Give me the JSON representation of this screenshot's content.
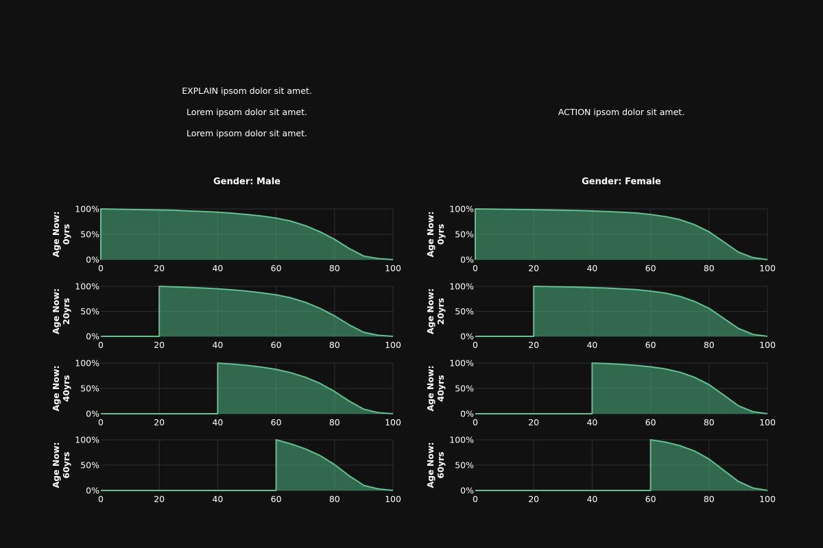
{
  "annotations": {
    "left": [
      "EXPLAIN ipsom dolor sit amet.",
      "Lorem ipsom dolor sit amet.",
      "Lorem ipsom dolor sit amet."
    ],
    "right": [
      "ACTION ipsom dolor sit amet."
    ]
  },
  "colors": {
    "background": "#111111",
    "grid": "#2b3038",
    "fill": "#4aa578",
    "line": "#5cc48e",
    "text": "#ffffff"
  },
  "chart_data": {
    "type": "area",
    "layout": "4 rows x 2 columns of small multiples",
    "columns": [
      "Gender: Male",
      "Gender: Female"
    ],
    "rows": [
      [
        "Age Now:",
        "0yrs"
      ],
      [
        "Age Now:",
        "20yrs"
      ],
      [
        "Age Now:",
        "40yrs"
      ],
      [
        "Age Now:",
        "60yrs"
      ]
    ],
    "row_start_ages": [
      0,
      20,
      40,
      60
    ],
    "xlim": [
      0,
      100
    ],
    "ylim": [
      0,
      1
    ],
    "x_ticks": [
      0,
      20,
      40,
      60,
      80,
      100
    ],
    "y_ticks": [
      0,
      0.5,
      1
    ],
    "y_tick_labels": [
      "0%",
      "50%",
      "100%"
    ],
    "grid": true,
    "series": [
      {
        "gender": "Male",
        "ages": [
          0,
          20,
          25,
          30,
          35,
          40,
          45,
          50,
          55,
          60,
          65,
          70,
          75,
          80,
          85,
          90,
          95,
          100
        ],
        "survival": [
          [
            1.0,
            0.98,
            0.975,
            0.96,
            0.95,
            0.935,
            0.915,
            0.89,
            0.86,
            0.82,
            0.76,
            0.67,
            0.55,
            0.4,
            0.22,
            0.07,
            0.02,
            0.0
          ],
          [
            null,
            1.0,
            0.99,
            0.98,
            0.965,
            0.95,
            0.93,
            0.905,
            0.87,
            0.83,
            0.77,
            0.68,
            0.56,
            0.41,
            0.23,
            0.08,
            0.02,
            0.0
          ],
          [
            null,
            null,
            null,
            null,
            null,
            1.0,
            0.98,
            0.955,
            0.92,
            0.875,
            0.81,
            0.72,
            0.6,
            0.44,
            0.25,
            0.09,
            0.02,
            0.0
          ],
          [
            null,
            null,
            null,
            null,
            null,
            null,
            null,
            null,
            null,
            1.0,
            0.92,
            0.82,
            0.69,
            0.51,
            0.29,
            0.1,
            0.03,
            0.0
          ]
        ]
      },
      {
        "gender": "Female",
        "ages": [
          0,
          20,
          25,
          30,
          35,
          40,
          45,
          50,
          55,
          60,
          65,
          70,
          75,
          80,
          85,
          90,
          95,
          100
        ],
        "survival": [
          [
            1.0,
            0.985,
            0.98,
            0.975,
            0.97,
            0.96,
            0.95,
            0.935,
            0.92,
            0.89,
            0.85,
            0.79,
            0.69,
            0.55,
            0.35,
            0.15,
            0.04,
            0.0
          ],
          [
            null,
            1.0,
            0.995,
            0.99,
            0.985,
            0.975,
            0.965,
            0.95,
            0.935,
            0.905,
            0.865,
            0.8,
            0.7,
            0.56,
            0.36,
            0.16,
            0.04,
            0.0
          ],
          [
            null,
            null,
            null,
            null,
            null,
            1.0,
            0.99,
            0.975,
            0.955,
            0.925,
            0.885,
            0.82,
            0.72,
            0.575,
            0.37,
            0.16,
            0.04,
            0.0
          ],
          [
            null,
            null,
            null,
            null,
            null,
            null,
            null,
            null,
            null,
            1.0,
            0.955,
            0.885,
            0.78,
            0.62,
            0.4,
            0.18,
            0.05,
            0.0
          ]
        ]
      }
    ]
  }
}
